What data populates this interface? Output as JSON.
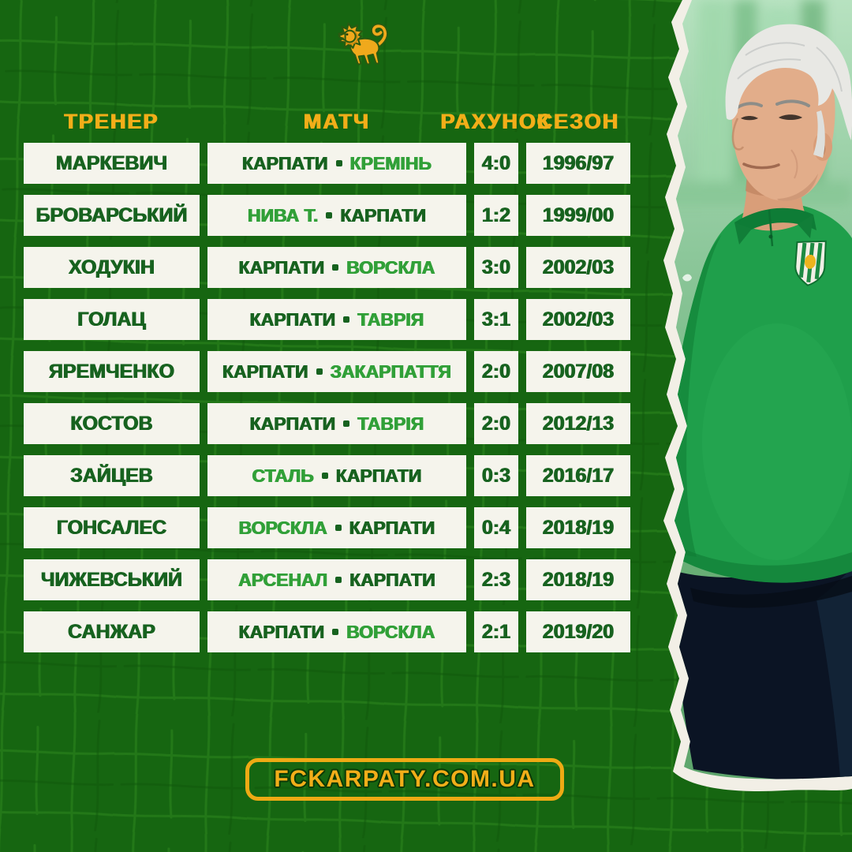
{
  "footer": {
    "website": "FCKARPATY.COM.UA"
  },
  "icons": {
    "lion_logo": "karpaty-lion-logo",
    "club_crest": "karpaty-crest-shield",
    "photo": "coach-portrait-torn-paper-cutout"
  },
  "colors": {
    "background_green": "#166611",
    "texture_stroke": "#2f8a1f",
    "gold_accent": "#f2ae19",
    "cell_background": "#f5f4ec",
    "karpaty_text": "#17621f",
    "opponent_text": "#31a038",
    "tear_white": "#f2efe6",
    "shirt_green": "#1f9f4b",
    "shorts_navy": "#0b1424"
  },
  "chart_data": {
    "type": "table",
    "columns": [
      "ТРЕНЕР",
      "МАТЧ",
      "РАХУНОК",
      "СЕЗОН"
    ],
    "rows": [
      {
        "coach": "МАРКЕВИЧ",
        "team1": "КАРПАТИ",
        "team2": "КРЕМІНЬ",
        "karpaty_index": 0,
        "score": "4:0",
        "season": "1996/97"
      },
      {
        "coach": "БРОВАРСЬКИЙ",
        "team1": "НИВА Т.",
        "team2": "КАРПАТИ",
        "karpaty_index": 1,
        "score": "1:2",
        "season": "1999/00"
      },
      {
        "coach": "ХОДУКІН",
        "team1": "КАРПАТИ",
        "team2": "ВОРСКЛА",
        "karpaty_index": 0,
        "score": "3:0",
        "season": "2002/03"
      },
      {
        "coach": "ГОЛАЦ",
        "team1": "КАРПАТИ",
        "team2": "ТАВРІЯ",
        "karpaty_index": 0,
        "score": "3:1",
        "season": "2002/03"
      },
      {
        "coach": "ЯРЕМЧЕНКО",
        "team1": "КАРПАТИ",
        "team2": "ЗАКАРПАТТЯ",
        "karpaty_index": 0,
        "score": "2:0",
        "season": "2007/08"
      },
      {
        "coach": "КОСТОВ",
        "team1": "КАРПАТИ",
        "team2": "ТАВРІЯ",
        "karpaty_index": 0,
        "score": "2:0",
        "season": "2012/13"
      },
      {
        "coach": "ЗАЙЦЕВ",
        "team1": "СТАЛЬ",
        "team2": "КАРПАТИ",
        "karpaty_index": 1,
        "score": "0:3",
        "season": "2016/17"
      },
      {
        "coach": "ГОНСАЛЕС",
        "team1": "ВОРСКЛА",
        "team2": "КАРПАТИ",
        "karpaty_index": 1,
        "score": "0:4",
        "season": "2018/19"
      },
      {
        "coach": "ЧИЖЕВСЬКИЙ",
        "team1": "АРСЕНАЛ",
        "team2": "КАРПАТИ",
        "karpaty_index": 1,
        "score": "2:3",
        "season": "2018/19"
      },
      {
        "coach": "САНЖАР",
        "team1": "КАРПАТИ",
        "team2": "ВОРСКЛА",
        "karpaty_index": 0,
        "score": "2:1",
        "season": "2019/20"
      }
    ],
    "title": "",
    "legend": "dark green = Karpaty, light green = opponent",
    "grid": "white cells on green textured background"
  }
}
